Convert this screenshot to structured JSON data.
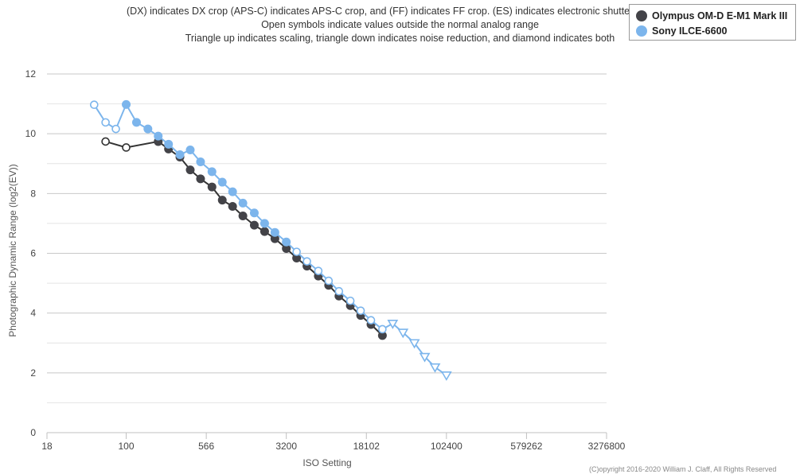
{
  "notes": [
    "(DX) indicates DX crop (APS-C) indicates APS-C crop, and (FF) indicates FF crop. (ES) indicates electronic shutter. (p) indic",
    "Open symbols indicate values outside the normal analog range",
    "Triangle up indicates scaling, triangle down indicates noise reduction, and diamond indicates both"
  ],
  "copyright": "(C)opyright 2016-2020 William J. Claff, All Rights Reserved",
  "chart_data": {
    "type": "line",
    "xlabel": "ISO Setting",
    "ylabel": "Photographic Dynamic Range (log2(EV))",
    "x_scale": "log",
    "xlim": [
      18,
      3276800
    ],
    "ylim": [
      0,
      12
    ],
    "x_ticks": [
      18,
      100,
      566,
      3200,
      18102,
      102400,
      579262,
      3276800
    ],
    "y_ticks": [
      0,
      2,
      4,
      6,
      8,
      10,
      12
    ],
    "grid": true,
    "legend_position": "top-right",
    "series": [
      {
        "name": "Olympus OM-D E-M1 Mark III",
        "color": "#434348",
        "points": [
          {
            "x": 64,
            "y": 9.74,
            "marker": "open-circle"
          },
          {
            "x": 100,
            "y": 9.54,
            "marker": "open-circle"
          },
          {
            "x": 200,
            "y": 9.74,
            "marker": "circle"
          },
          {
            "x": 250,
            "y": 9.49,
            "marker": "circle"
          },
          {
            "x": 320,
            "y": 9.22,
            "marker": "circle"
          },
          {
            "x": 400,
            "y": 8.79,
            "marker": "circle"
          },
          {
            "x": 500,
            "y": 8.49,
            "marker": "circle"
          },
          {
            "x": 640,
            "y": 8.22,
            "marker": "circle"
          },
          {
            "x": 800,
            "y": 7.78,
            "marker": "circle"
          },
          {
            "x": 1000,
            "y": 7.57,
            "marker": "circle"
          },
          {
            "x": 1250,
            "y": 7.25,
            "marker": "circle"
          },
          {
            "x": 1600,
            "y": 6.94,
            "marker": "circle"
          },
          {
            "x": 2000,
            "y": 6.73,
            "marker": "circle"
          },
          {
            "x": 2500,
            "y": 6.49,
            "marker": "circle"
          },
          {
            "x": 3200,
            "y": 6.16,
            "marker": "circle"
          },
          {
            "x": 4000,
            "y": 5.84,
            "marker": "circle"
          },
          {
            "x": 5000,
            "y": 5.57,
            "marker": "circle"
          },
          {
            "x": 6400,
            "y": 5.24,
            "marker": "circle"
          },
          {
            "x": 8000,
            "y": 4.93,
            "marker": "circle"
          },
          {
            "x": 10000,
            "y": 4.57,
            "marker": "circle"
          },
          {
            "x": 12800,
            "y": 4.25,
            "marker": "circle"
          },
          {
            "x": 16000,
            "y": 3.92,
            "marker": "circle"
          },
          {
            "x": 20000,
            "y": 3.62,
            "marker": "circle"
          },
          {
            "x": 25600,
            "y": 3.25,
            "marker": "circle"
          }
        ]
      },
      {
        "name": "Sony ILCE-6600",
        "color": "#7cb5ec",
        "points": [
          {
            "x": 50,
            "y": 10.97,
            "marker": "open-circle"
          },
          {
            "x": 64,
            "y": 10.38,
            "marker": "open-circle"
          },
          {
            "x": 80,
            "y": 10.16,
            "marker": "open-circle"
          },
          {
            "x": 100,
            "y": 10.98,
            "marker": "circle"
          },
          {
            "x": 125,
            "y": 10.38,
            "marker": "circle"
          },
          {
            "x": 160,
            "y": 10.16,
            "marker": "circle"
          },
          {
            "x": 200,
            "y": 9.92,
            "marker": "circle"
          },
          {
            "x": 250,
            "y": 9.65,
            "marker": "circle"
          },
          {
            "x": 320,
            "y": 9.3,
            "marker": "circle"
          },
          {
            "x": 400,
            "y": 9.46,
            "marker": "circle"
          },
          {
            "x": 500,
            "y": 9.06,
            "marker": "circle"
          },
          {
            "x": 640,
            "y": 8.73,
            "marker": "circle"
          },
          {
            "x": 800,
            "y": 8.38,
            "marker": "circle"
          },
          {
            "x": 1000,
            "y": 8.06,
            "marker": "circle"
          },
          {
            "x": 1250,
            "y": 7.68,
            "marker": "circle"
          },
          {
            "x": 1600,
            "y": 7.35,
            "marker": "circle"
          },
          {
            "x": 2000,
            "y": 7.0,
            "marker": "circle"
          },
          {
            "x": 2500,
            "y": 6.7,
            "marker": "circle"
          },
          {
            "x": 3200,
            "y": 6.38,
            "marker": "circle"
          },
          {
            "x": 4000,
            "y": 6.05,
            "marker": "open-circle"
          },
          {
            "x": 5000,
            "y": 5.73,
            "marker": "open-circle"
          },
          {
            "x": 6400,
            "y": 5.41,
            "marker": "open-circle"
          },
          {
            "x": 8000,
            "y": 5.08,
            "marker": "open-circle"
          },
          {
            "x": 10000,
            "y": 4.73,
            "marker": "open-circle"
          },
          {
            "x": 12800,
            "y": 4.41,
            "marker": "open-circle"
          },
          {
            "x": 16000,
            "y": 4.08,
            "marker": "open-circle"
          },
          {
            "x": 20000,
            "y": 3.76,
            "marker": "open-circle"
          },
          {
            "x": 25600,
            "y": 3.46,
            "marker": "open-circle"
          },
          {
            "x": 32000,
            "y": 3.65,
            "marker": "open-triangle-down"
          },
          {
            "x": 40000,
            "y": 3.35,
            "marker": "open-triangle-down"
          },
          {
            "x": 51200,
            "y": 3.0,
            "marker": "open-triangle-down"
          },
          {
            "x": 64000,
            "y": 2.54,
            "marker": "open-triangle-down"
          },
          {
            "x": 80000,
            "y": 2.19,
            "marker": "open-triangle-down"
          },
          {
            "x": 102400,
            "y": 1.92,
            "marker": "open-triangle-down"
          }
        ]
      }
    ]
  }
}
